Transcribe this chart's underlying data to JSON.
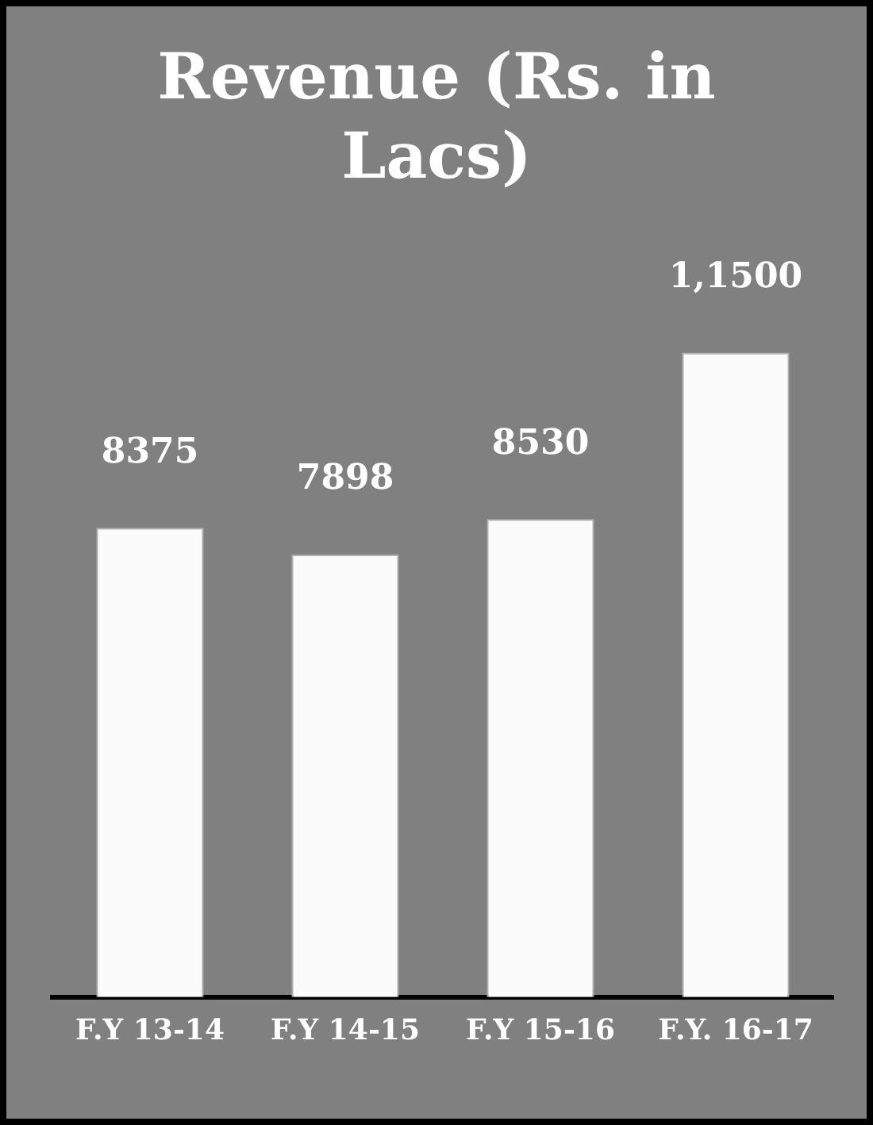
{
  "chart_data": {
    "type": "bar",
    "title": "Revenue (Rs. in Lacs)",
    "categories": [
      "F.Y 13-14",
      "F.Y 14-15",
      "F.Y 15-16",
      "F.Y. 16-17"
    ],
    "values": [
      8375,
      7898,
      8530,
      11500
    ],
    "value_labels": [
      "8375",
      "7898",
      "8530",
      "1,1500"
    ],
    "color": "#fbfbfb",
    "relative": false,
    "grid": false,
    "legend": false
  }
}
